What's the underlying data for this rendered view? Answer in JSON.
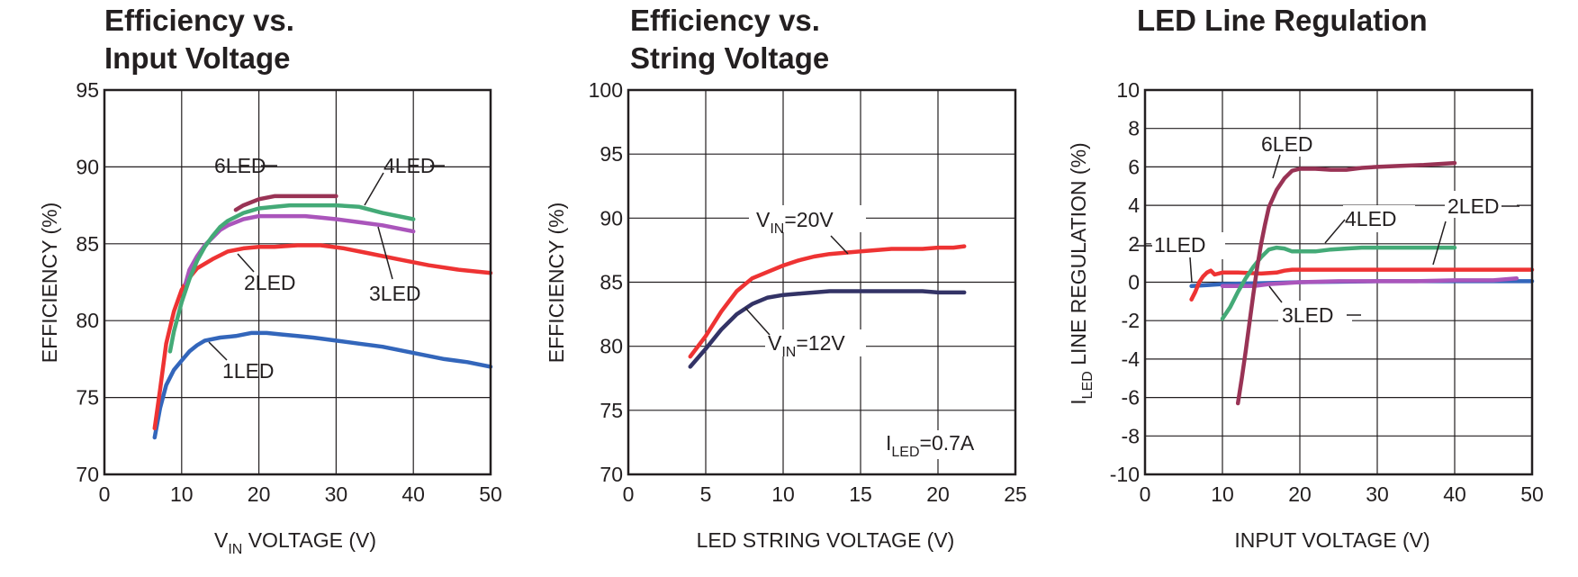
{
  "chart_data": [
    {
      "type": "line",
      "title_lines": [
        "Efficiency vs.",
        "Input Voltage"
      ],
      "xlabel_main": "V",
      "xlabel_sub": "IN",
      "xlabel_rest": " VOLTAGE (V)",
      "ylabel": "EFFICIENCY (%)",
      "xlim": [
        0,
        50
      ],
      "ylim": [
        70,
        95
      ],
      "xticks": [
        "0",
        "10",
        "20",
        "30",
        "40",
        "50"
      ],
      "yticks": [
        "70",
        "75",
        "80",
        "85",
        "90",
        "95"
      ],
      "grid": true,
      "series": [
        {
          "name": "1LED",
          "color": "#3366bb",
          "x": [
            6.5,
            7.2,
            8,
            9,
            10,
            11,
            12,
            13,
            15,
            17,
            19,
            21,
            23,
            25,
            27,
            30,
            33,
            36,
            40,
            44,
            47,
            50
          ],
          "y": [
            72.4,
            74.3,
            75.8,
            76.8,
            77.4,
            78.0,
            78.4,
            78.7,
            78.9,
            79.0,
            79.2,
            79.2,
            79.1,
            79.0,
            78.9,
            78.7,
            78.5,
            78.3,
            77.9,
            77.5,
            77.3,
            77.0
          ]
        },
        {
          "name": "2LED",
          "color": "#ee3333",
          "x": [
            6.5,
            7.2,
            8,
            9,
            10,
            11,
            12,
            14,
            16,
            18,
            20,
            22,
            25,
            28,
            31,
            34,
            38,
            42,
            46,
            50
          ],
          "y": [
            73.0,
            75.5,
            78.5,
            80.6,
            82.0,
            82.8,
            83.4,
            84.0,
            84.5,
            84.7,
            84.8,
            84.8,
            84.9,
            84.9,
            84.7,
            84.4,
            84.0,
            83.6,
            83.3,
            83.1
          ]
        },
        {
          "name": "3LED",
          "color": "#aa55bb",
          "x": [
            10.5,
            11,
            12,
            13,
            14,
            15,
            16,
            18,
            20,
            22,
            24,
            26,
            28,
            30,
            33,
            36,
            40
          ],
          "y": [
            82.4,
            83.3,
            84.2,
            84.9,
            85.4,
            85.9,
            86.2,
            86.6,
            86.8,
            86.8,
            86.8,
            86.8,
            86.7,
            86.6,
            86.4,
            86.2,
            85.8
          ]
        },
        {
          "name": "4LED",
          "color": "#44aa77",
          "x": [
            8.5,
            9,
            10,
            11,
            12,
            13,
            14,
            15,
            16,
            18,
            20,
            22,
            24,
            26,
            28,
            30,
            33,
            36,
            40
          ],
          "y": [
            78.0,
            79.3,
            81.2,
            82.7,
            83.9,
            84.8,
            85.5,
            86.1,
            86.5,
            87.0,
            87.3,
            87.4,
            87.5,
            87.5,
            87.5,
            87.5,
            87.4,
            87.0,
            86.6
          ]
        },
        {
          "name": "6LED",
          "color": "#993355",
          "x": [
            17,
            18,
            20,
            22,
            24,
            26,
            28,
            30
          ],
          "y": [
            87.2,
            87.5,
            87.9,
            88.1,
            88.1,
            88.1,
            88.1,
            88.1
          ]
        }
      ],
      "annotations": [
        "6LED",
        "4LED",
        "2LED",
        "3LED",
        "1LED"
      ]
    },
    {
      "type": "line",
      "title_lines": [
        "Efficiency vs.",
        "String Voltage"
      ],
      "xlabel": "LED STRING VOLTAGE (V)",
      "ylabel": "EFFICIENCY (%)",
      "xlim": [
        0,
        25
      ],
      "ylim": [
        70,
        100
      ],
      "xticks": [
        "0",
        "5",
        "10",
        "15",
        "20",
        "25"
      ],
      "yticks": [
        "70",
        "75",
        "80",
        "85",
        "90",
        "95",
        "100"
      ],
      "grid": true,
      "series": [
        {
          "name_main": "V",
          "name_sub": "IN",
          "name_rest": "=20V",
          "color": "#ee3333",
          "x": [
            4,
            5,
            6,
            7,
            8,
            9,
            10,
            11,
            12,
            13,
            14,
            15,
            16,
            17,
            18,
            19,
            20,
            21,
            21.7
          ],
          "y": [
            79.2,
            80.8,
            82.7,
            84.3,
            85.3,
            85.8,
            86.3,
            86.7,
            87.0,
            87.2,
            87.3,
            87.4,
            87.5,
            87.6,
            87.6,
            87.6,
            87.7,
            87.7,
            87.8
          ]
        },
        {
          "name_main": "V",
          "name_sub": "IN",
          "name_rest": "=12V",
          "color": "#333366",
          "x": [
            4,
            5,
            6,
            7,
            8,
            9,
            10,
            11,
            12,
            13,
            14,
            15,
            16,
            17,
            18,
            19,
            20,
            21,
            21.7
          ],
          "y": [
            78.4,
            79.8,
            81.3,
            82.5,
            83.3,
            83.8,
            84.0,
            84.1,
            84.2,
            84.3,
            84.3,
            84.3,
            84.3,
            84.3,
            84.3,
            84.3,
            84.2,
            84.2,
            84.2
          ]
        }
      ],
      "note_main": "I",
      "note_sub": "LED",
      "note_rest": "=0.7A"
    },
    {
      "type": "line",
      "title_lines": [
        "LED Line Regulation"
      ],
      "xlabel": "INPUT VOLTAGE (V)",
      "ylabel_main": "I",
      "ylabel_sub": "LED",
      "ylabel_rest": " LINE REGULATION (%)",
      "xlim": [
        0,
        50
      ],
      "ylim": [
        -10,
        10
      ],
      "xticks": [
        "0",
        "10",
        "20",
        "30",
        "40",
        "50"
      ],
      "yticks": [
        "-10",
        "-8",
        "-6",
        "-4",
        "-2",
        "0",
        "2",
        "4",
        "6",
        "8",
        "10"
      ],
      "grid": true,
      "series": [
        {
          "name": "1LED",
          "color": "#3366bb",
          "x": [
            6,
            8,
            10,
            15,
            20,
            30,
            40,
            50
          ],
          "y": [
            -0.2,
            -0.15,
            -0.1,
            -0.05,
            0,
            0.05,
            0.05,
            0.05
          ]
        },
        {
          "name": "2LED",
          "color": "#ee3333",
          "x": [
            6,
            6.5,
            7,
            7.5,
            8,
            8.5,
            9,
            10,
            12,
            15,
            17,
            18,
            19,
            20,
            25,
            30,
            35,
            40,
            45,
            50
          ],
          "y": [
            -0.9,
            -0.5,
            0,
            0.3,
            0.5,
            0.6,
            0.4,
            0.5,
            0.5,
            0.45,
            0.5,
            0.6,
            0.65,
            0.65,
            0.65,
            0.65,
            0.65,
            0.65,
            0.65,
            0.65
          ]
        },
        {
          "name": "3LED",
          "color": "#aa55bb",
          "x": [
            10,
            12,
            14,
            16,
            18,
            20,
            25,
            30,
            35,
            40,
            45,
            48
          ],
          "y": [
            -0.2,
            -0.2,
            -0.2,
            -0.1,
            -0.05,
            0,
            0.05,
            0.05,
            0.05,
            0.1,
            0.1,
            0.2
          ]
        },
        {
          "name": "4LED",
          "color": "#44aa77",
          "x": [
            10,
            11,
            12,
            13,
            14,
            15,
            16,
            17,
            18,
            19,
            20,
            22,
            24,
            26,
            28,
            30,
            35,
            40
          ],
          "y": [
            -1.9,
            -1.3,
            -0.5,
            0.2,
            0.8,
            1.3,
            1.7,
            1.8,
            1.75,
            1.6,
            1.6,
            1.6,
            1.7,
            1.75,
            1.8,
            1.8,
            1.8,
            1.8
          ]
        },
        {
          "name": "6LED",
          "color": "#993355",
          "x": [
            12,
            12.5,
            13,
            13.5,
            14,
            14.5,
            15,
            15.5,
            16,
            17,
            18,
            19,
            20,
            22,
            24,
            26,
            28,
            30,
            33,
            36,
            40
          ],
          "y": [
            -6.3,
            -5.0,
            -3.6,
            -2.1,
            -0.6,
            0.8,
            2.0,
            3.0,
            3.9,
            4.8,
            5.4,
            5.8,
            5.9,
            5.9,
            5.85,
            5.85,
            5.95,
            6.0,
            6.05,
            6.1,
            6.2
          ]
        }
      ],
      "annotations": [
        "6LED",
        "4LED",
        "2LED",
        "1LED",
        "3LED"
      ]
    }
  ]
}
